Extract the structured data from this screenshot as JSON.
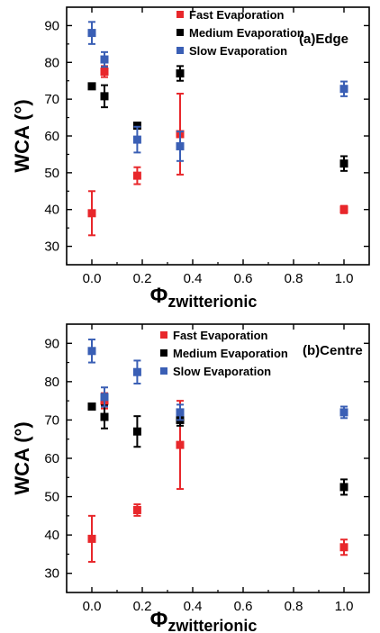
{
  "chart_data": [
    {
      "type": "scatter",
      "annotation": "(a)Edge",
      "xlabel": "Φ",
      "xlabel_sub": "zwitterionic",
      "ylabel": "WCA (°)",
      "xlim": [
        -0.1,
        1.1
      ],
      "ylim": [
        25,
        95
      ],
      "xticks": [
        0.0,
        0.2,
        0.4,
        0.6,
        0.8,
        1.0
      ],
      "xtick_labels": [
        "0.0",
        "0.2",
        "0.4",
        "0.6",
        "0.8",
        "1.0"
      ],
      "yticks": [
        30,
        40,
        50,
        60,
        70,
        80,
        90
      ],
      "ytick_labels": [
        "30",
        "40",
        "50",
        "60",
        "70",
        "80",
        "90"
      ],
      "grid": false,
      "legend_position": "top-center",
      "series": [
        {
          "name": "Fast Evaporation",
          "color": "#e8272b",
          "points": [
            {
              "x": 0.0,
              "y": 39.0,
              "err": 6.0
            },
            {
              "x": 0.05,
              "y": 77.5,
              "err": 1.5
            },
            {
              "x": 0.18,
              "y": 49.2,
              "err": 2.3
            },
            {
              "x": 0.35,
              "y": 60.5,
              "err": 11.0
            },
            {
              "x": 1.0,
              "y": 40.0,
              "err": 1.0
            }
          ]
        },
        {
          "name": "Medium Evaporation",
          "color": "#000000",
          "points": [
            {
              "x": 0.0,
              "y": 73.5,
              "err": 0.5
            },
            {
              "x": 0.05,
              "y": 70.8,
              "err": 3.0
            },
            {
              "x": 0.18,
              "y": 62.8,
              "err": 0.5
            },
            {
              "x": 0.35,
              "y": 77.0,
              "err": 2.0
            },
            {
              "x": 1.0,
              "y": 52.5,
              "err": 2.0
            }
          ]
        },
        {
          "name": "Slow Evaporation",
          "color": "#3a5fb5",
          "points": [
            {
              "x": 0.0,
              "y": 88.0,
              "err": 3.0
            },
            {
              "x": 0.05,
              "y": 80.8,
              "err": 2.0
            },
            {
              "x": 0.18,
              "y": 59.0,
              "err": 3.5
            },
            {
              "x": 0.35,
              "y": 57.2,
              "err": 4.0
            },
            {
              "x": 1.0,
              "y": 72.8,
              "err": 2.0
            }
          ]
        }
      ]
    },
    {
      "type": "scatter",
      "annotation": "(b)Centre",
      "xlabel": "Φ",
      "xlabel_sub": "zwitterionic",
      "ylabel": "WCA (°)",
      "xlim": [
        -0.1,
        1.1
      ],
      "ylim": [
        25,
        95
      ],
      "xticks": [
        0.0,
        0.2,
        0.4,
        0.6,
        0.8,
        1.0
      ],
      "xtick_labels": [
        "0.0",
        "0.2",
        "0.4",
        "0.6",
        "0.8",
        "1.0"
      ],
      "yticks": [
        30,
        40,
        50,
        60,
        70,
        80,
        90
      ],
      "ytick_labels": [
        "30",
        "40",
        "50",
        "60",
        "70",
        "80",
        "90"
      ],
      "grid": false,
      "legend_position": "top-center",
      "series": [
        {
          "name": "Fast Evaporation",
          "color": "#e8272b",
          "points": [
            {
              "x": 0.0,
              "y": 39.0,
              "err": 6.0
            },
            {
              "x": 0.05,
              "y": 75.0,
              "err": 2.0
            },
            {
              "x": 0.18,
              "y": 46.5,
              "err": 1.5
            },
            {
              "x": 0.35,
              "y": 63.5,
              "err": 11.5
            },
            {
              "x": 1.0,
              "y": 36.8,
              "err": 2.0
            }
          ]
        },
        {
          "name": "Medium Evaporation",
          "color": "#000000",
          "points": [
            {
              "x": 0.0,
              "y": 73.5,
              "err": 0.5
            },
            {
              "x": 0.05,
              "y": 70.8,
              "err": 3.0
            },
            {
              "x": 0.18,
              "y": 67.0,
              "err": 4.0
            },
            {
              "x": 0.35,
              "y": 70.0,
              "err": 1.5
            },
            {
              "x": 1.0,
              "y": 52.5,
              "err": 2.0
            }
          ]
        },
        {
          "name": "Slow Evaporation",
          "color": "#3a5fb5",
          "points": [
            {
              "x": 0.0,
              "y": 88.0,
              "err": 3.0
            },
            {
              "x": 0.05,
              "y": 76.0,
              "err": 2.5
            },
            {
              "x": 0.18,
              "y": 82.5,
              "err": 3.0
            },
            {
              "x": 0.35,
              "y": 72.0,
              "err": 2.0
            },
            {
              "x": 1.0,
              "y": 72.0,
              "err": 1.5
            }
          ]
        }
      ]
    }
  ]
}
